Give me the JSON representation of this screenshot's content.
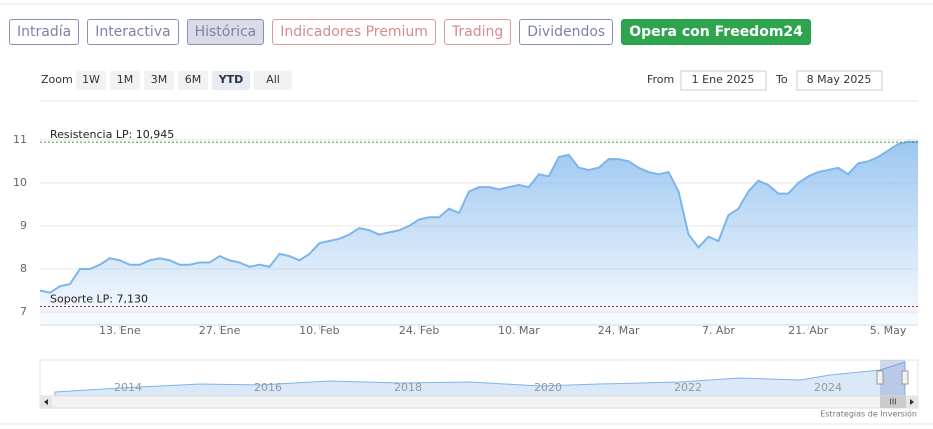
{
  "tabs": [
    {
      "label": "Intradía",
      "style": "default"
    },
    {
      "label": "Interactiva",
      "style": "default"
    },
    {
      "label": "Histórica",
      "style": "active"
    },
    {
      "label": "Indicadores Premium",
      "style": "warm"
    },
    {
      "label": "Trading",
      "style": "warm"
    },
    {
      "label": "Dividendos",
      "style": "default"
    },
    {
      "label": "Opera con Freedom24",
      "style": "cta"
    }
  ],
  "range_selector": {
    "zoom_label": "Zoom",
    "buttons": [
      "1W",
      "1M",
      "3M",
      "6M",
      "YTD",
      "All"
    ],
    "selected": "YTD",
    "from_label": "From",
    "from_value": "1 Ene 2025",
    "to_label": "To",
    "to_value": "8 May 2025"
  },
  "navigator": {
    "labels": [
      "2014",
      "2016",
      "2018",
      "2020",
      "2022",
      "2024"
    ],
    "scroll_grip": "III"
  },
  "credit": "Estrategias de Inversión",
  "chart_data": {
    "type": "area",
    "color": "#7cb5ec",
    "grid": true,
    "categories": [
      null,
      null,
      null,
      null,
      null,
      null,
      null,
      null,
      "13. Ene",
      null,
      null,
      null,
      null,
      null,
      null,
      null,
      null,
      null,
      "27. Ene",
      null,
      null,
      null,
      null,
      null,
      null,
      null,
      null,
      null,
      "10. Feb",
      null,
      null,
      null,
      null,
      null,
      null,
      null,
      null,
      null,
      "24. Feb",
      null,
      null,
      null,
      null,
      null,
      null,
      null,
      null,
      null,
      "10. Mar",
      null,
      null,
      null,
      null,
      null,
      null,
      null,
      null,
      null,
      "24. Mar",
      null,
      null,
      null,
      null,
      null,
      null,
      null,
      null,
      null,
      "7. Abr",
      null,
      null,
      null,
      null,
      null,
      null,
      null,
      null,
      "21. Abr",
      null,
      null,
      null,
      null,
      null,
      null,
      null,
      "5. May",
      null,
      null,
      null
    ],
    "values": [
      7.5,
      7.45,
      7.6,
      7.65,
      8.0,
      8.0,
      8.1,
      8.25,
      8.2,
      8.1,
      8.1,
      8.2,
      8.25,
      8.2,
      8.1,
      8.1,
      8.15,
      8.15,
      8.3,
      8.2,
      8.15,
      8.05,
      8.1,
      8.05,
      8.35,
      8.3,
      8.2,
      8.35,
      8.6,
      8.65,
      8.7,
      8.8,
      8.95,
      8.9,
      8.8,
      8.85,
      8.9,
      9.0,
      9.15,
      9.2,
      9.2,
      9.4,
      9.3,
      9.8,
      9.9,
      9.9,
      9.85,
      9.9,
      9.95,
      9.9,
      10.2,
      10.15,
      10.6,
      10.65,
      10.35,
      10.3,
      10.35,
      10.55,
      10.55,
      10.5,
      10.35,
      10.25,
      10.2,
      10.25,
      9.8,
      8.8,
      8.5,
      8.75,
      8.65,
      9.25,
      9.4,
      9.8,
      10.05,
      9.95,
      9.75,
      9.75,
      10.0,
      10.15,
      10.25,
      10.3,
      10.35,
      10.2,
      10.45,
      10.5,
      10.6,
      10.75,
      10.9,
      10.95,
      10.95
    ],
    "ylim": [
      6.7,
      11.9
    ],
    "yticks": [
      7,
      8,
      9,
      10,
      11
    ],
    "plot_lines": [
      {
        "value": 10.945,
        "label": "Resistencia LP: 10,945",
        "color": "#3a9a3a"
      },
      {
        "value": 7.13,
        "label": "Soporte LP: 7,130",
        "color": "#b22222"
      }
    ]
  }
}
